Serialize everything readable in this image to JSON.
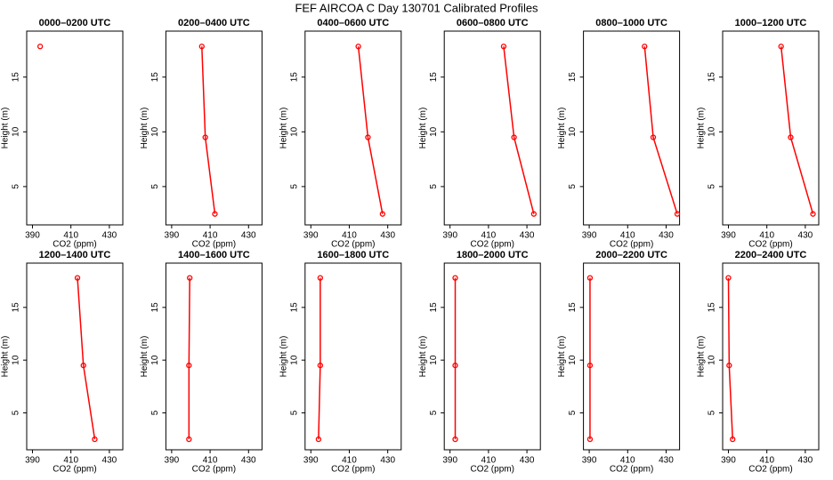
{
  "title": "FEF AIRCOA C  Day 130701  Calibrated Profiles",
  "chart_data": [
    {
      "type": "line",
      "title": "0000–0200 UTC",
      "xlabel": "CO2 (ppm)",
      "ylabel": "Height (m)",
      "color": "#ff0000",
      "x": [
        394,
        null,
        null
      ],
      "values": [
        17.8,
        null,
        null
      ],
      "xlim": [
        387,
        437
      ],
      "xticks": [
        390,
        410,
        430
      ],
      "ylim": [
        1.5,
        19.2
      ],
      "yticks": [
        5,
        10,
        15
      ]
    },
    {
      "type": "line",
      "title": "0200–0400 UTC",
      "xlabel": "CO2 (ppm)",
      "ylabel": "Height (m)",
      "color": "#ff0000",
      "x": [
        405.7,
        407.5,
        412.5
      ],
      "values": [
        17.8,
        9.5,
        2.5
      ],
      "xlim": [
        387,
        437
      ],
      "xticks": [
        390,
        410,
        430
      ],
      "ylim": [
        1.5,
        19.2
      ],
      "yticks": [
        5,
        10,
        15
      ]
    },
    {
      "type": "line",
      "title": "0400–0600 UTC",
      "xlabel": "CO2 (ppm)",
      "ylabel": "Height (m)",
      "color": "#ff0000",
      "x": [
        414.7,
        419.7,
        427.3
      ],
      "values": [
        17.8,
        9.5,
        2.5
      ],
      "xlim": [
        387,
        437
      ],
      "xticks": [
        390,
        410,
        430
      ],
      "ylim": [
        1.5,
        19.2
      ],
      "yticks": [
        5,
        10,
        15
      ]
    },
    {
      "type": "line",
      "title": "0600–0800 UTC",
      "xlabel": "CO2 (ppm)",
      "ylabel": "Height (m)",
      "color": "#ff0000",
      "x": [
        417.9,
        423.3,
        433.6
      ],
      "values": [
        17.8,
        9.5,
        2.5
      ],
      "xlim": [
        387,
        437
      ],
      "xticks": [
        390,
        410,
        430
      ],
      "ylim": [
        1.5,
        19.2
      ],
      "yticks": [
        5,
        10,
        15
      ]
    },
    {
      "type": "line",
      "title": "0800–1000 UTC",
      "xlabel": "CO2 (ppm)",
      "ylabel": "Height (m)",
      "color": "#ff0000",
      "x": [
        418.8,
        423.3,
        435.8
      ],
      "values": [
        17.8,
        9.5,
        2.5
      ],
      "xlim": [
        387,
        437
      ],
      "xticks": [
        390,
        410,
        430
      ],
      "ylim": [
        1.5,
        19.2
      ],
      "yticks": [
        5,
        10,
        15
      ]
    },
    {
      "type": "line",
      "title": "1000–1200 UTC",
      "xlabel": "CO2 (ppm)",
      "ylabel": "Height (m)",
      "color": "#ff0000",
      "x": [
        417.4,
        422.4,
        434
      ],
      "values": [
        17.8,
        9.5,
        2.5
      ],
      "xlim": [
        387,
        437
      ],
      "xticks": [
        390,
        410,
        430
      ],
      "ylim": [
        1.5,
        19.2
      ],
      "yticks": [
        5,
        10,
        15
      ]
    },
    {
      "type": "line",
      "title": "1200–1400 UTC",
      "xlabel": "CO2 (ppm)",
      "ylabel": "Height (m)",
      "color": "#ff0000",
      "x": [
        413.4,
        416.5,
        422.4
      ],
      "values": [
        17.8,
        9.5,
        2.5
      ],
      "xlim": [
        387,
        437
      ],
      "xticks": [
        390,
        410,
        430
      ],
      "ylim": [
        1.5,
        19.2
      ],
      "yticks": [
        5,
        10,
        15
      ]
    },
    {
      "type": "line",
      "title": "1400–1600 UTC",
      "xlabel": "CO2 (ppm)",
      "ylabel": "Height (m)",
      "color": "#ff0000",
      "x": [
        399.4,
        399,
        399
      ],
      "values": [
        17.8,
        9.5,
        2.5
      ],
      "xlim": [
        387,
        437
      ],
      "xticks": [
        390,
        410,
        430
      ],
      "ylim": [
        1.5,
        19.2
      ],
      "yticks": [
        5,
        10,
        15
      ]
    },
    {
      "type": "line",
      "title": "1600–1800 UTC",
      "xlabel": "CO2 (ppm)",
      "ylabel": "Height (m)",
      "color": "#ff0000",
      "x": [
        394.9,
        394.9,
        394
      ],
      "values": [
        17.8,
        9.5,
        2.5
      ],
      "xlim": [
        387,
        437
      ],
      "xticks": [
        390,
        410,
        430
      ],
      "ylim": [
        1.5,
        19.2
      ],
      "yticks": [
        5,
        10,
        15
      ]
    },
    {
      "type": "line",
      "title": "1800–2000 UTC",
      "xlabel": "CO2 (ppm)",
      "ylabel": "Height (m)",
      "color": "#ff0000",
      "x": [
        392.7,
        392.7,
        392.7
      ],
      "values": [
        17.8,
        9.5,
        2.5
      ],
      "xlim": [
        387,
        437
      ],
      "xticks": [
        390,
        410,
        430
      ],
      "ylim": [
        1.5,
        19.2
      ],
      "yticks": [
        5,
        10,
        15
      ]
    },
    {
      "type": "line",
      "title": "2000–2200 UTC",
      "xlabel": "CO2 (ppm)",
      "ylabel": "Height (m)",
      "color": "#ff0000",
      "x": [
        390.4,
        390.4,
        390.4
      ],
      "values": [
        17.8,
        9.5,
        2.5
      ],
      "xlim": [
        387,
        437
      ],
      "xticks": [
        390,
        410,
        430
      ],
      "ylim": [
        1.5,
        19.2
      ],
      "yticks": [
        5,
        10,
        15
      ]
    },
    {
      "type": "line",
      "title": "2200–2400 UTC",
      "xlabel": "CO2 (ppm)",
      "ylabel": "Height (m)",
      "color": "#ff0000",
      "x": [
        390,
        390.4,
        392.2
      ],
      "values": [
        17.8,
        9.5,
        2.5
      ],
      "xlim": [
        387,
        437
      ],
      "xticks": [
        390,
        410,
        430
      ],
      "ylim": [
        1.5,
        19.2
      ],
      "yticks": [
        5,
        10,
        15
      ]
    }
  ]
}
